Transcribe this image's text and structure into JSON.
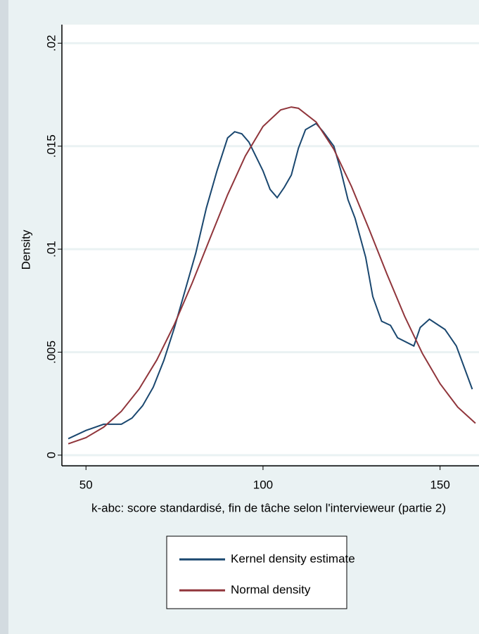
{
  "chart_data": {
    "type": "line",
    "x_label": "k-abc: score standardisé, fin de tâche selon l'intervieweur (partie 2)",
    "y_label": "Density",
    "xlim": [
      43.2,
      161
    ],
    "ylim": [
      -0.00045,
      0.0209
    ],
    "xticks": [
      50,
      100,
      150
    ],
    "yticks": [
      0,
      {
        "value": 0.005,
        "label": ".005"
      },
      {
        "value": 0.01,
        "label": ".01"
      },
      {
        "value": 0.015,
        "label": ".015"
      },
      {
        "value": 0.02,
        "label": ".02"
      }
    ],
    "grid": true,
    "series": [
      {
        "name": "Kernel density estimate",
        "color": "#1a476f",
        "x": [
          45,
          50,
          55,
          60,
          63,
          66,
          69,
          72,
          75,
          78,
          81,
          84,
          87,
          90,
          92,
          94,
          96,
          98,
          100,
          102,
          104,
          106,
          108,
          110,
          112,
          115,
          117,
          120,
          122,
          124,
          126,
          129,
          131,
          133.5,
          136,
          138,
          142.6,
          144.4,
          147,
          151.4,
          154.6,
          159.1
        ],
        "values": [
          0.0008,
          0.0012,
          0.0015,
          0.0015,
          0.0018,
          0.0024,
          0.0033,
          0.0046,
          0.0062,
          0.008,
          0.0098,
          0.012,
          0.0138,
          0.0154,
          0.0157,
          0.0156,
          0.0152,
          0.0145,
          0.0138,
          0.0129,
          0.0125,
          0.013,
          0.0136,
          0.0149,
          0.0158,
          0.0161,
          0.0157,
          0.015,
          0.0138,
          0.0124,
          0.0115,
          0.0096,
          0.0077,
          0.0065,
          0.0063,
          0.0057,
          0.0053,
          0.0062,
          0.0066,
          0.0061,
          0.0053,
          0.0032
        ]
      },
      {
        "name": "Normal density",
        "color": "#90353b",
        "x": [
          45,
          50,
          55,
          60,
          65,
          70,
          75,
          80,
          85,
          90,
          95,
          100,
          105,
          108,
          110,
          115,
          120,
          125,
          130,
          135,
          140,
          145,
          150,
          155,
          160
        ],
        "values": [
          0.00055,
          0.00085,
          0.00136,
          0.00213,
          0.00321,
          0.00462,
          0.00636,
          0.00836,
          0.01051,
          0.01264,
          0.01452,
          0.01596,
          0.01676,
          0.0169,
          0.01684,
          0.01617,
          0.01485,
          0.01304,
          0.01095,
          0.00879,
          0.00674,
          0.00494,
          0.00347,
          0.00233,
          0.00155
        ]
      }
    ]
  }
}
